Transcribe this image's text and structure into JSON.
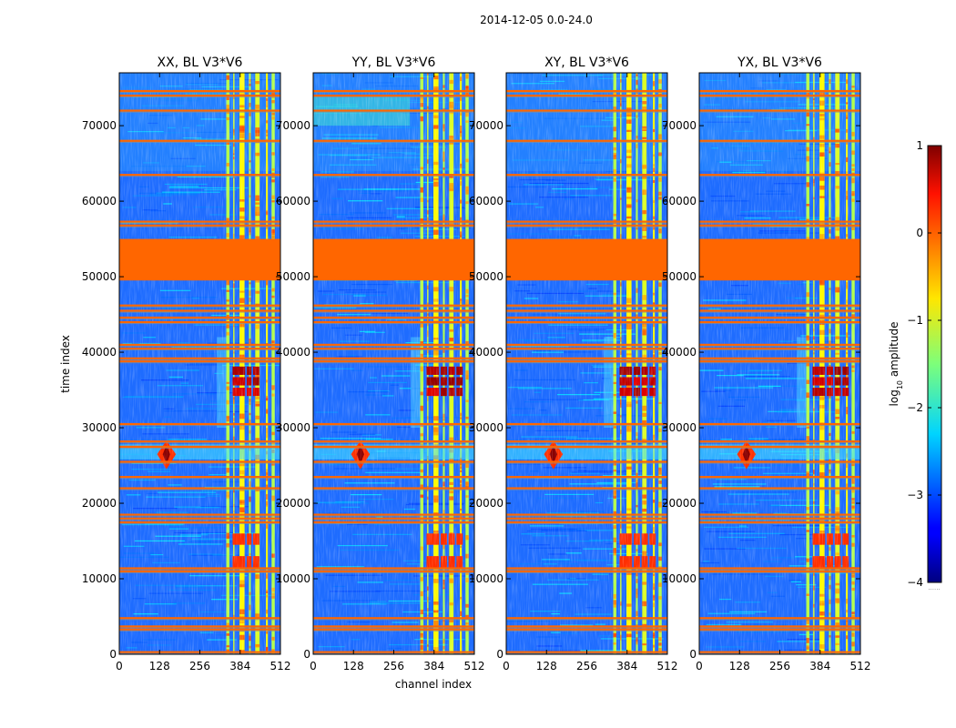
{
  "chart_data": {
    "type": "heatmap",
    "suptitle": "2014-12-05 0.0-24.0",
    "xlabel": "channel index",
    "ylabel": "time index",
    "xlim": [
      0,
      512
    ],
    "ylim": [
      0,
      77000
    ],
    "xticks": [
      0,
      128,
      256,
      384,
      512
    ],
    "yticks": [
      0,
      10000,
      20000,
      30000,
      40000,
      50000,
      60000,
      70000
    ],
    "panels": [
      {
        "title": "XX, BL V3*V6",
        "variant": 0
      },
      {
        "title": "YY, BL V3*V6",
        "variant": 1
      },
      {
        "title": "XY, BL V3*V6",
        "variant": 2
      },
      {
        "title": "YX, BL V3*V6",
        "variant": 3
      }
    ],
    "colorbar": {
      "label_main": "log",
      "label_sub": "10",
      "label_rest": " amplitude",
      "range": [
        -4,
        1
      ],
      "ticks": [
        -4,
        -3,
        -2,
        -1,
        0,
        1
      ],
      "tick_labels": [
        "−4",
        "−3",
        "−2",
        "−1",
        "0",
        "1"
      ],
      "colormap": "jet",
      "footnote": "......"
    },
    "flagged_time_ranges": [
      [
        49500,
        55000
      ]
    ],
    "flagged_rows": [
      300,
      3300,
      3700,
      4800,
      11000,
      11400,
      17500,
      18000,
      18500,
      22000,
      23500,
      25500,
      27500,
      28200,
      30500,
      38800,
      39200,
      40500,
      41000,
      44000,
      44600,
      45500,
      46200,
      56800,
      57300,
      63500,
      68000,
      72000,
      74000,
      74600
    ],
    "rfi_channel_bands": [
      [
        340,
        350
      ],
      [
        362,
        366
      ],
      [
        382,
        398
      ],
      [
        412,
        418
      ],
      [
        432,
        446
      ],
      [
        466,
        472
      ],
      [
        484,
        494
      ]
    ],
    "colors": {
      "flag": "#ff6600",
      "gridline_grey": "#8c8c8c"
    }
  }
}
